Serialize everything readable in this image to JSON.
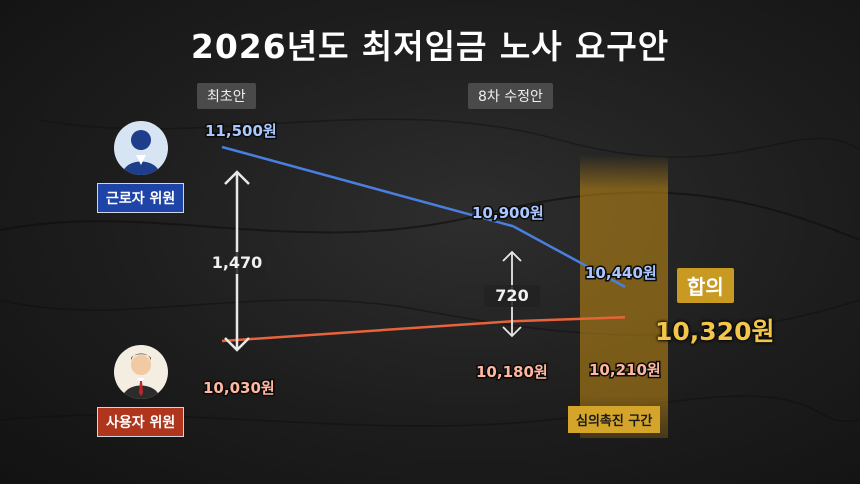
{
  "title": "2026년도 최저임금 노사 요구안",
  "stage_tags": [
    "최초안",
    "8차 수정안"
  ],
  "roles": {
    "labor": "근로자 위원",
    "management": "사용자 위원"
  },
  "zone_label": "심의촉진 구간",
  "agreement": {
    "label": "합의",
    "value": "10,320원"
  },
  "colors": {
    "labor": "#4a7fe0",
    "management": "#e8633a",
    "zone": "#d4a52a",
    "labor_badge": "#1e44a8",
    "management_badge": "#b0351d"
  },
  "icons": {
    "labor_avatar": "worker-avatar-icon",
    "management_avatar": "manager-avatar-icon"
  },
  "chart_data": {
    "type": "line",
    "title": "2026년도 최저임금 노사 요구안",
    "x": [
      "최초안",
      "8차 수정안",
      "심의촉진 구간"
    ],
    "series": [
      {
        "name": "근로자 위원",
        "values": [
          11500,
          10900,
          10440
        ],
        "labels": [
          "11,500원",
          "10,900원",
          "10,440원"
        ]
      },
      {
        "name": "사용자 위원",
        "values": [
          10030,
          10180,
          10210
        ],
        "labels": [
          "10,030원",
          "10,180원",
          "10,210원"
        ]
      }
    ],
    "gaps": [
      {
        "stage": "최초안",
        "value": 1470,
        "label": "1,470"
      },
      {
        "stage": "8차 수정안",
        "value": 720,
        "label": "720"
      }
    ],
    "agreed": 10320
  }
}
